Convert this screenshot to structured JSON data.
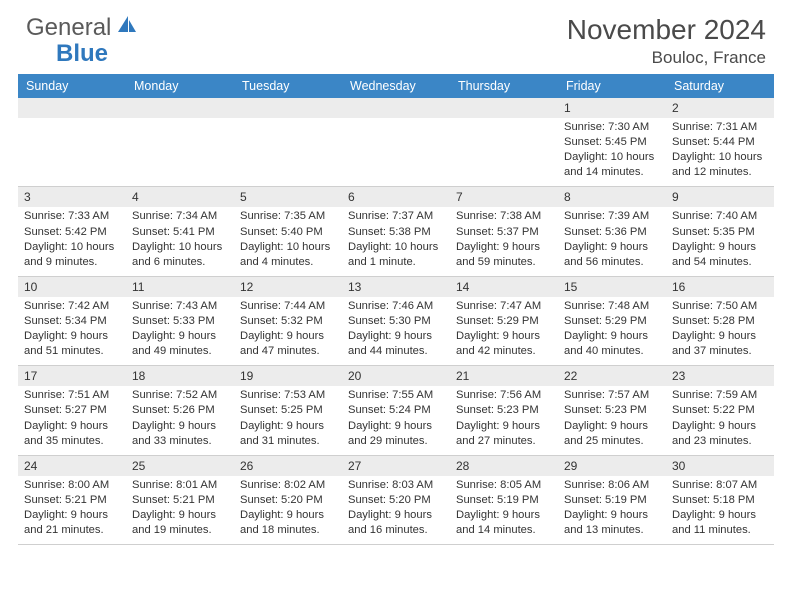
{
  "logo": {
    "general": "General",
    "blue": "Blue"
  },
  "title": "November 2024",
  "location": "Bouloc, France",
  "colors": {
    "header_bg": "#3b86c6",
    "header_text": "#ffffff",
    "daynum_bg": "#ececec",
    "border": "#cfcfcf",
    "logo_blue": "#2f78bd",
    "logo_gray": "#5a5a5a",
    "body_text": "#333333"
  },
  "weekdays": [
    "Sunday",
    "Monday",
    "Tuesday",
    "Wednesday",
    "Thursday",
    "Friday",
    "Saturday"
  ],
  "weeks": [
    [
      null,
      null,
      null,
      null,
      null,
      {
        "n": "1",
        "sr": "7:30 AM",
        "ss": "5:45 PM",
        "dl": "10 hours and 14 minutes."
      },
      {
        "n": "2",
        "sr": "7:31 AM",
        "ss": "5:44 PM",
        "dl": "10 hours and 12 minutes."
      }
    ],
    [
      {
        "n": "3",
        "sr": "7:33 AM",
        "ss": "5:42 PM",
        "dl": "10 hours and 9 minutes."
      },
      {
        "n": "4",
        "sr": "7:34 AM",
        "ss": "5:41 PM",
        "dl": "10 hours and 6 minutes."
      },
      {
        "n": "5",
        "sr": "7:35 AM",
        "ss": "5:40 PM",
        "dl": "10 hours and 4 minutes."
      },
      {
        "n": "6",
        "sr": "7:37 AM",
        "ss": "5:38 PM",
        "dl": "10 hours and 1 minute."
      },
      {
        "n": "7",
        "sr": "7:38 AM",
        "ss": "5:37 PM",
        "dl": "9 hours and 59 minutes."
      },
      {
        "n": "8",
        "sr": "7:39 AM",
        "ss": "5:36 PM",
        "dl": "9 hours and 56 minutes."
      },
      {
        "n": "9",
        "sr": "7:40 AM",
        "ss": "5:35 PM",
        "dl": "9 hours and 54 minutes."
      }
    ],
    [
      {
        "n": "10",
        "sr": "7:42 AM",
        "ss": "5:34 PM",
        "dl": "9 hours and 51 minutes."
      },
      {
        "n": "11",
        "sr": "7:43 AM",
        "ss": "5:33 PM",
        "dl": "9 hours and 49 minutes."
      },
      {
        "n": "12",
        "sr": "7:44 AM",
        "ss": "5:32 PM",
        "dl": "9 hours and 47 minutes."
      },
      {
        "n": "13",
        "sr": "7:46 AM",
        "ss": "5:30 PM",
        "dl": "9 hours and 44 minutes."
      },
      {
        "n": "14",
        "sr": "7:47 AM",
        "ss": "5:29 PM",
        "dl": "9 hours and 42 minutes."
      },
      {
        "n": "15",
        "sr": "7:48 AM",
        "ss": "5:29 PM",
        "dl": "9 hours and 40 minutes."
      },
      {
        "n": "16",
        "sr": "7:50 AM",
        "ss": "5:28 PM",
        "dl": "9 hours and 37 minutes."
      }
    ],
    [
      {
        "n": "17",
        "sr": "7:51 AM",
        "ss": "5:27 PM",
        "dl": "9 hours and 35 minutes."
      },
      {
        "n": "18",
        "sr": "7:52 AM",
        "ss": "5:26 PM",
        "dl": "9 hours and 33 minutes."
      },
      {
        "n": "19",
        "sr": "7:53 AM",
        "ss": "5:25 PM",
        "dl": "9 hours and 31 minutes."
      },
      {
        "n": "20",
        "sr": "7:55 AM",
        "ss": "5:24 PM",
        "dl": "9 hours and 29 minutes."
      },
      {
        "n": "21",
        "sr": "7:56 AM",
        "ss": "5:23 PM",
        "dl": "9 hours and 27 minutes."
      },
      {
        "n": "22",
        "sr": "7:57 AM",
        "ss": "5:23 PM",
        "dl": "9 hours and 25 minutes."
      },
      {
        "n": "23",
        "sr": "7:59 AM",
        "ss": "5:22 PM",
        "dl": "9 hours and 23 minutes."
      }
    ],
    [
      {
        "n": "24",
        "sr": "8:00 AM",
        "ss": "5:21 PM",
        "dl": "9 hours and 21 minutes."
      },
      {
        "n": "25",
        "sr": "8:01 AM",
        "ss": "5:21 PM",
        "dl": "9 hours and 19 minutes."
      },
      {
        "n": "26",
        "sr": "8:02 AM",
        "ss": "5:20 PM",
        "dl": "9 hours and 18 minutes."
      },
      {
        "n": "27",
        "sr": "8:03 AM",
        "ss": "5:20 PM",
        "dl": "9 hours and 16 minutes."
      },
      {
        "n": "28",
        "sr": "8:05 AM",
        "ss": "5:19 PM",
        "dl": "9 hours and 14 minutes."
      },
      {
        "n": "29",
        "sr": "8:06 AM",
        "ss": "5:19 PM",
        "dl": "9 hours and 13 minutes."
      },
      {
        "n": "30",
        "sr": "8:07 AM",
        "ss": "5:18 PM",
        "dl": "9 hours and 11 minutes."
      }
    ]
  ],
  "labels": {
    "sunrise": "Sunrise:",
    "sunset": "Sunset:",
    "daylight": "Daylight:"
  }
}
